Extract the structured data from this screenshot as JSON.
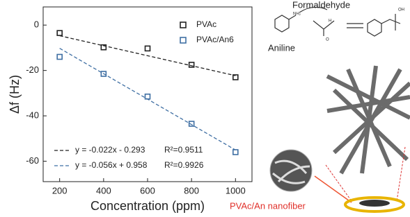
{
  "chart_data": {
    "type": "scatter",
    "y_label": "Δf (Hz)",
    "x_label": "Concentration (ppm)",
    "x": [
      200,
      400,
      600,
      800,
      1000
    ],
    "series": [
      {
        "name": "PVAc",
        "color": "#222222",
        "values": [
          -3.5,
          -9.8,
          -10.3,
          -17.5,
          -23
        ]
      },
      {
        "name": "PVAc/An6",
        "color": "#3f6fa3",
        "values": [
          -14,
          -21.5,
          -31.5,
          -43.5,
          -56
        ]
      }
    ],
    "fits": [
      {
        "slope": -0.022,
        "intercept": -0.293,
        "label": "y = -0.022x - 0.293",
        "r2": "R²=0.9511",
        "color": "#222222"
      },
      {
        "slope": -0.056,
        "intercept": 0.958,
        "label": "y = -0.056x + 0.958",
        "r2": "R²=0.9926",
        "color": "#3f6fa3"
      }
    ],
    "xlim": [
      125,
      1075
    ],
    "ylim": [
      -69,
      8
    ],
    "xticks": [
      200,
      400,
      600,
      800,
      1000
    ],
    "yticks": [
      0,
      -20,
      -40,
      -60
    ]
  },
  "diagram": {
    "formaldehyde": "Formaldehyde",
    "aniline": "Aniline",
    "nh2": "NH₂",
    "h": "H",
    "o": "O",
    "oh": "OH",
    "nanofiber": "PVAc/An nanofiber"
  }
}
